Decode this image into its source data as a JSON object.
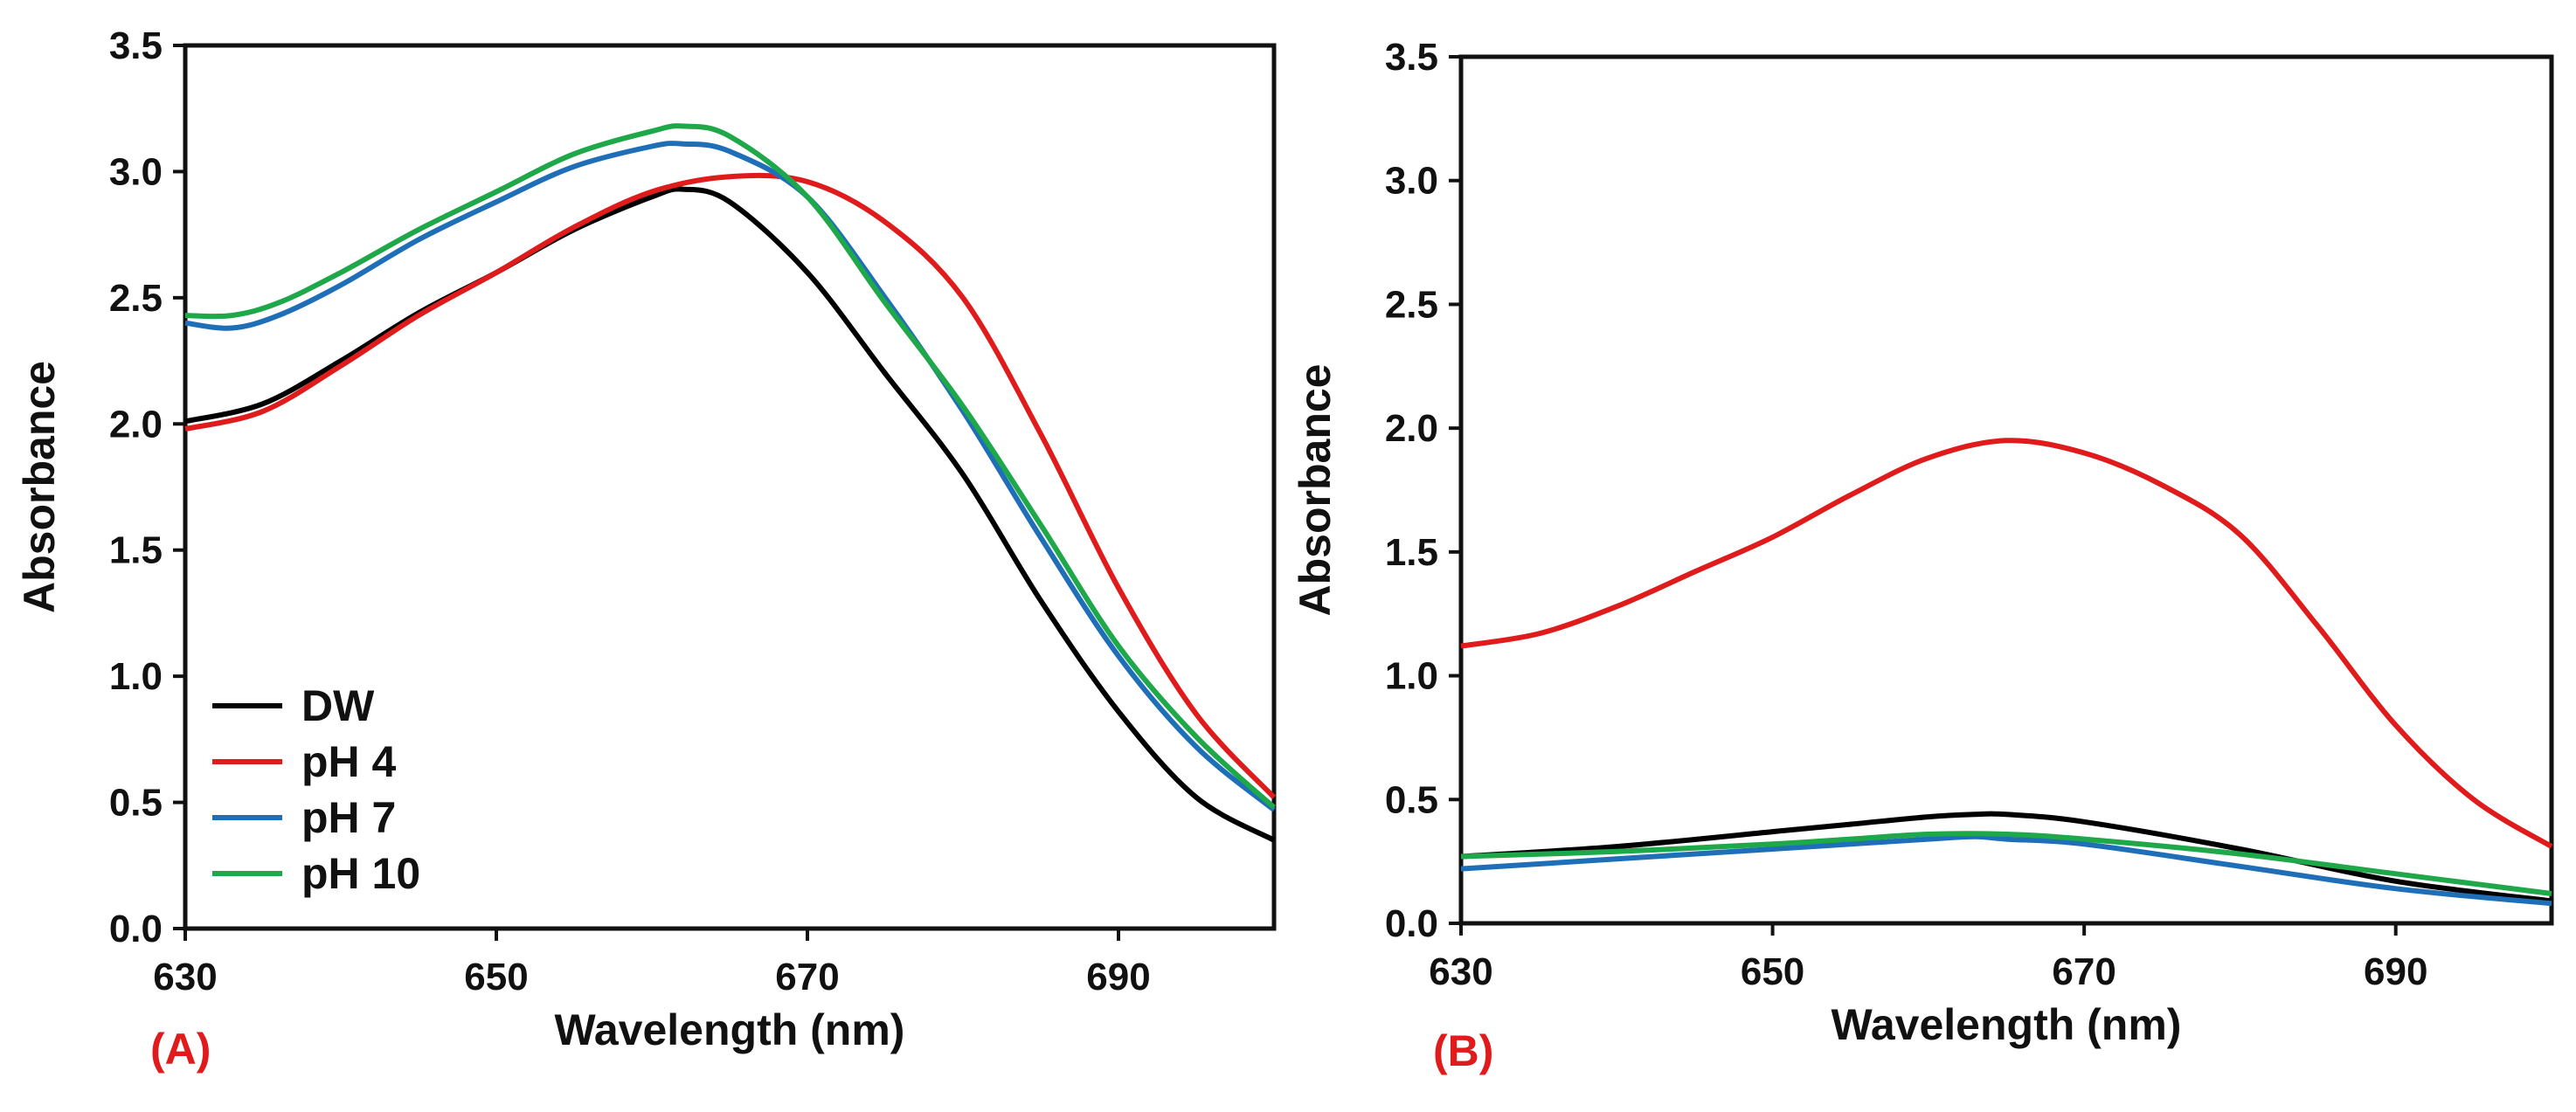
{
  "chart_data": [
    {
      "type": "line",
      "panel_label": "(A)",
      "xlabel": "Wavelength (nm)",
      "ylabel": "Absorbance",
      "xlim": [
        630,
        700
      ],
      "ylim": [
        0,
        3.5
      ],
      "xticks": [
        "630",
        "650",
        "670",
        "690"
      ],
      "yticks": [
        "0.0",
        "0.5",
        "1.0",
        "1.5",
        "2.0",
        "2.5",
        "3.0",
        "3.5"
      ],
      "legend_position": "bottom-left",
      "series": [
        {
          "name": "DW",
          "color": "#000000",
          "x": [
            630,
            635,
            640,
            645,
            650,
            655,
            660,
            662,
            665,
            670,
            675,
            680,
            685,
            690,
            695,
            700
          ],
          "y": [
            2.01,
            2.08,
            2.25,
            2.44,
            2.6,
            2.77,
            2.9,
            2.93,
            2.88,
            2.6,
            2.2,
            1.8,
            1.3,
            0.86,
            0.52,
            0.35
          ]
        },
        {
          "name": "pH 4",
          "color": "#e01b1b",
          "x": [
            630,
            635,
            640,
            645,
            650,
            655,
            660,
            665,
            670,
            675,
            680,
            685,
            690,
            695,
            700
          ],
          "y": [
            1.98,
            2.05,
            2.23,
            2.43,
            2.6,
            2.78,
            2.92,
            2.98,
            2.96,
            2.8,
            2.5,
            1.96,
            1.35,
            0.85,
            0.52
          ]
        },
        {
          "name": "pH 7",
          "color": "#1f6fb8",
          "x": [
            630,
            633,
            636,
            640,
            645,
            650,
            655,
            660,
            662,
            665,
            670,
            675,
            680,
            685,
            690,
            695,
            700
          ],
          "y": [
            2.4,
            2.38,
            2.43,
            2.55,
            2.73,
            2.88,
            3.02,
            3.1,
            3.11,
            3.08,
            2.9,
            2.5,
            2.05,
            1.55,
            1.08,
            0.72,
            0.47
          ]
        },
        {
          "name": "pH 10",
          "color": "#1fa84a",
          "x": [
            630,
            633,
            636,
            640,
            645,
            650,
            655,
            660,
            662,
            665,
            670,
            675,
            680,
            685,
            690,
            695,
            700
          ],
          "y": [
            2.43,
            2.43,
            2.48,
            2.6,
            2.77,
            2.92,
            3.07,
            3.16,
            3.18,
            3.14,
            2.9,
            2.48,
            2.07,
            1.6,
            1.12,
            0.76,
            0.48
          ]
        }
      ]
    },
    {
      "type": "line",
      "panel_label": "(B)",
      "xlabel": "Wavelength (nm)",
      "ylabel": "Absorbance",
      "xlim": [
        630,
        700
      ],
      "ylim": [
        0,
        3.5
      ],
      "xticks": [
        "630",
        "650",
        "670",
        "690"
      ],
      "yticks": [
        "0.0",
        "0.5",
        "1.0",
        "1.5",
        "2.0",
        "2.5",
        "3.0",
        "3.5"
      ],
      "legend_position": "none",
      "series": [
        {
          "name": "DW",
          "color": "#000000",
          "x": [
            630,
            640,
            650,
            655,
            660,
            663,
            665,
            670,
            680,
            690,
            700
          ],
          "y": [
            0.27,
            0.31,
            0.37,
            0.4,
            0.43,
            0.44,
            0.44,
            0.41,
            0.3,
            0.17,
            0.09
          ]
        },
        {
          "name": "pH 4",
          "color": "#e01b1b",
          "x": [
            630,
            635,
            640,
            645,
            650,
            655,
            660,
            665,
            670,
            675,
            680,
            685,
            690,
            695,
            700
          ],
          "y": [
            1.12,
            1.17,
            1.28,
            1.42,
            1.56,
            1.73,
            1.88,
            1.95,
            1.9,
            1.77,
            1.57,
            1.2,
            0.8,
            0.5,
            0.31
          ]
        },
        {
          "name": "pH 7",
          "color": "#1f6fb8",
          "x": [
            630,
            640,
            650,
            655,
            660,
            663,
            665,
            670,
            680,
            690,
            700
          ],
          "y": [
            0.22,
            0.26,
            0.3,
            0.32,
            0.34,
            0.35,
            0.34,
            0.32,
            0.23,
            0.14,
            0.08
          ]
        },
        {
          "name": "pH 10",
          "color": "#1fa84a",
          "x": [
            630,
            640,
            650,
            655,
            660,
            665,
            670,
            680,
            690,
            700
          ],
          "y": [
            0.27,
            0.29,
            0.32,
            0.34,
            0.36,
            0.36,
            0.34,
            0.28,
            0.2,
            0.12
          ]
        }
      ]
    }
  ]
}
